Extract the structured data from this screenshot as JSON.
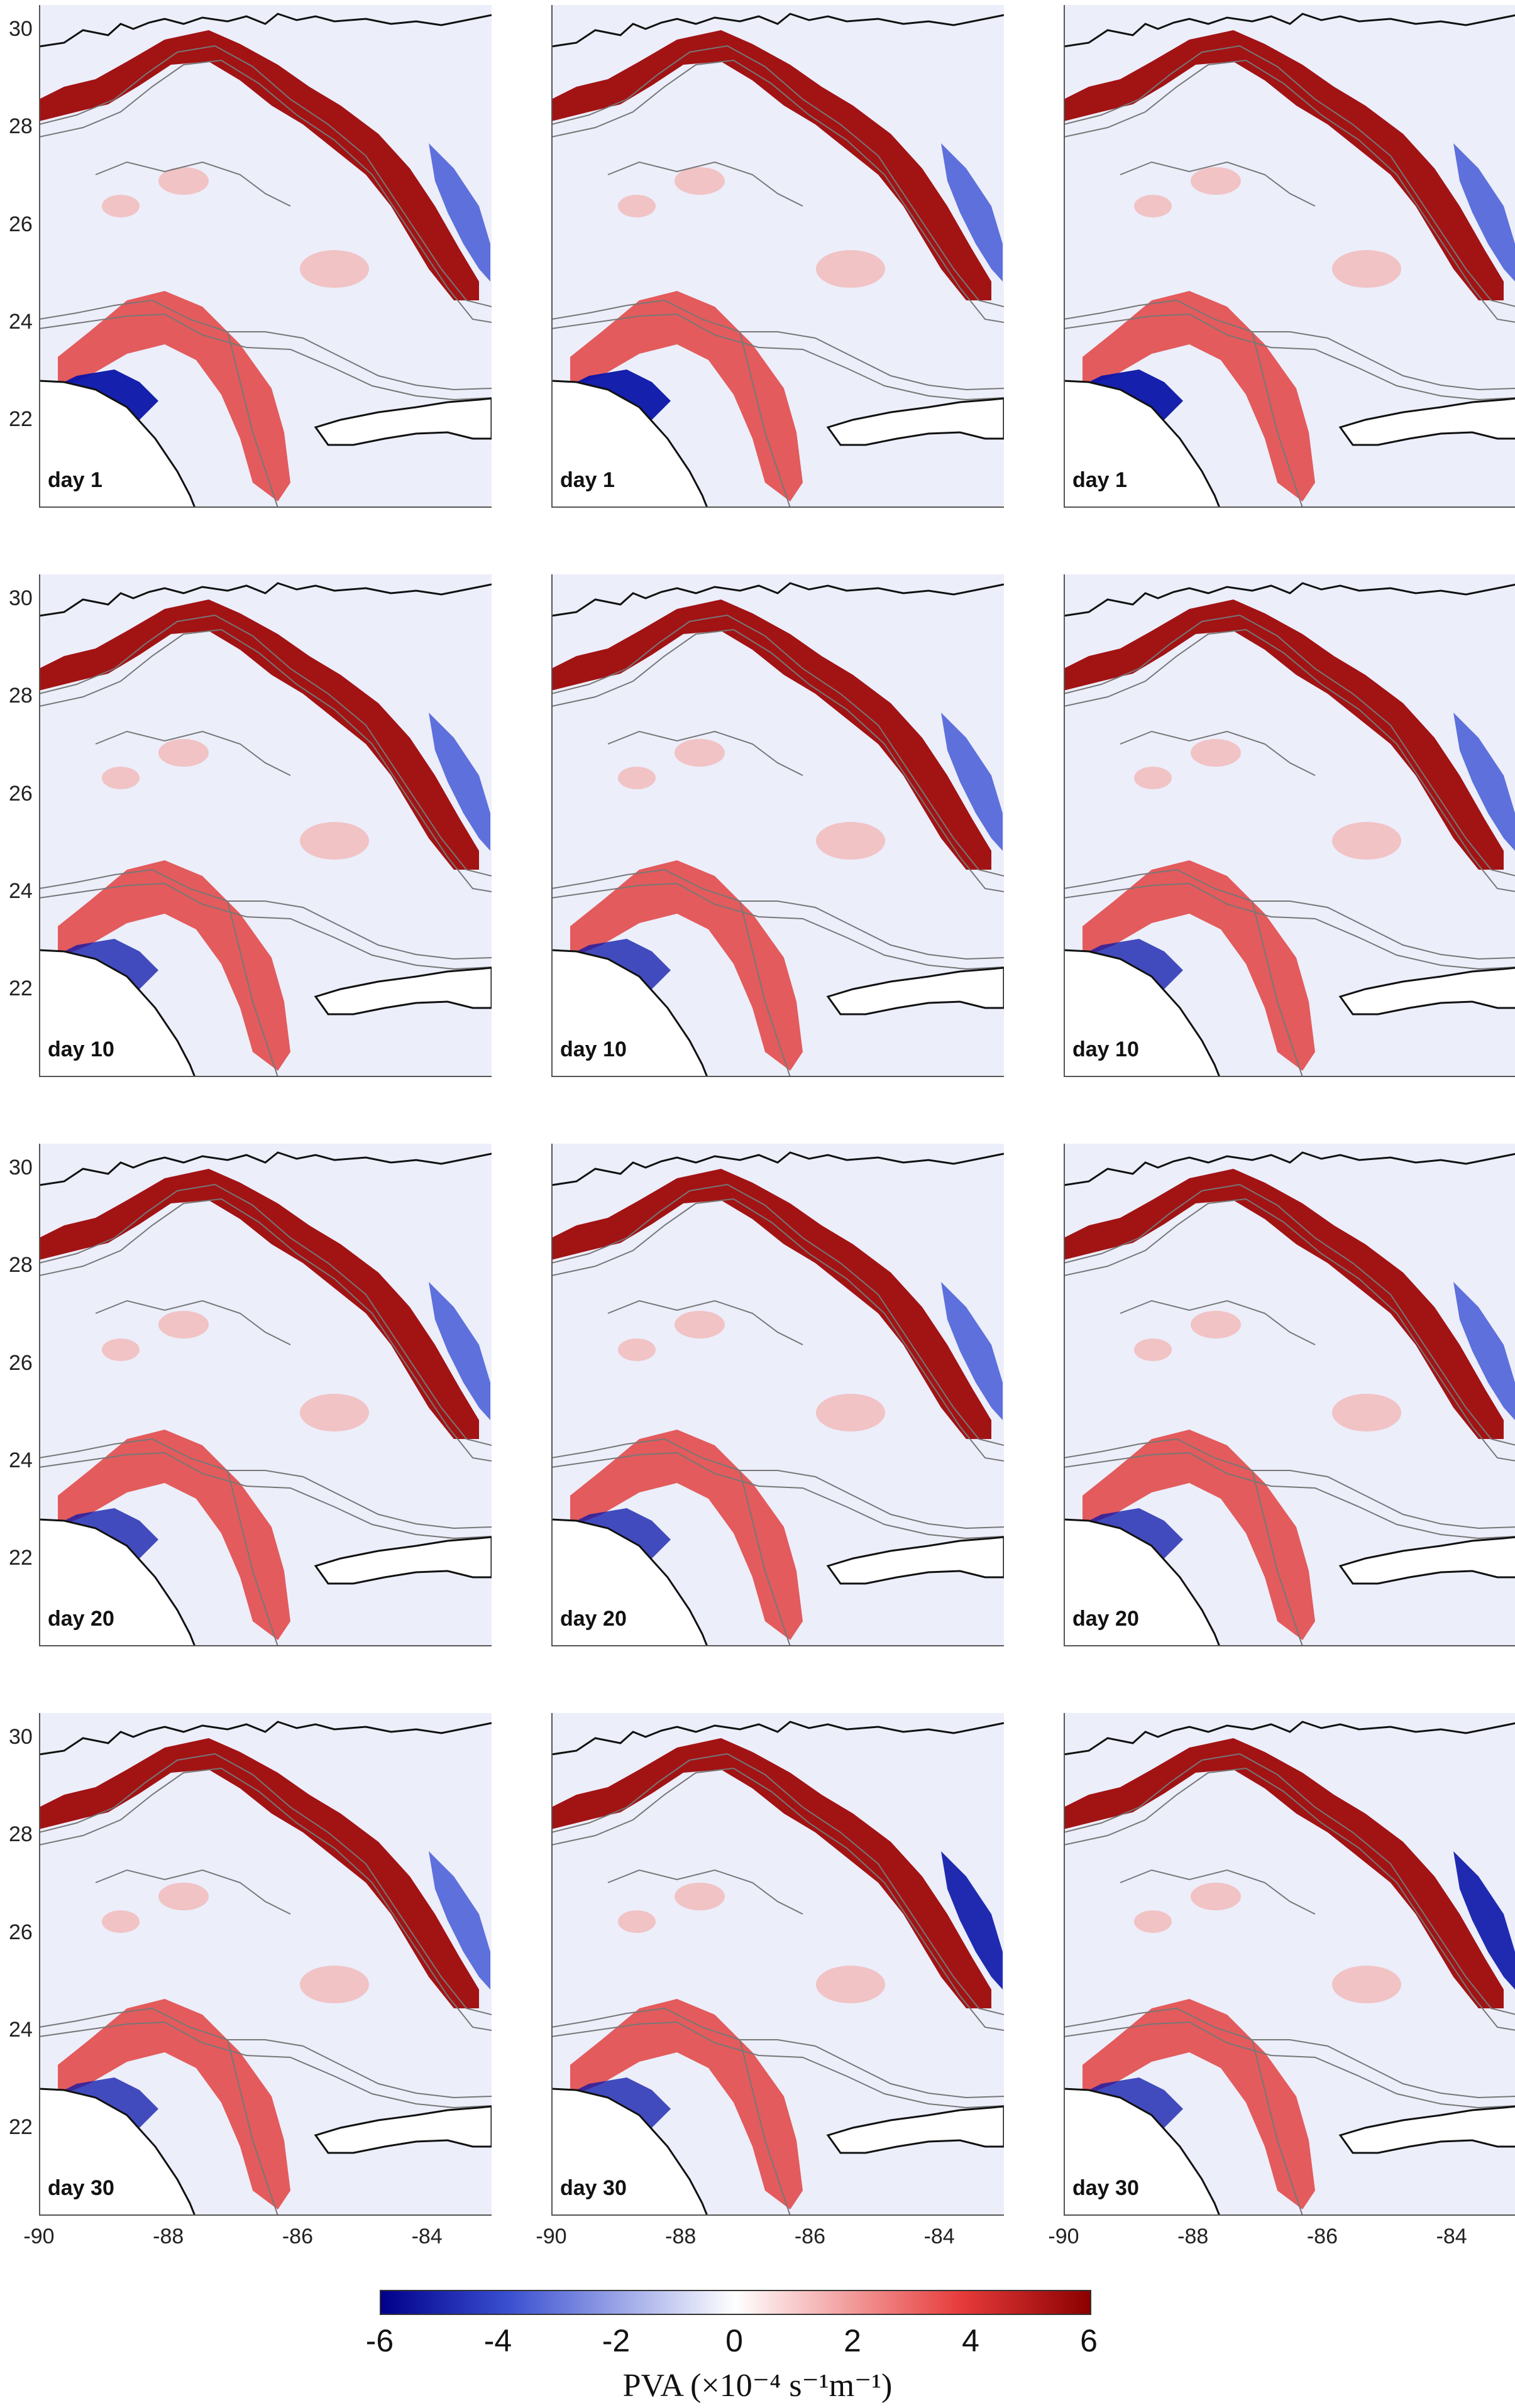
{
  "figure": {
    "panel_rows": [
      {
        "day_label": "day 1"
      },
      {
        "day_label": "day 10"
      },
      {
        "day_label": "day 20"
      },
      {
        "day_label": "day 30"
      }
    ],
    "panel_columns": 3,
    "latitude_ticks": [
      "30",
      "28",
      "26",
      "24",
      "22"
    ],
    "longitude_ticks": [
      "-90",
      "-88",
      "-86",
      "-84"
    ],
    "longitude_range": [
      -90,
      -83
    ],
    "latitude_range": [
      20.2,
      30.5
    ]
  },
  "colorbar": {
    "ticks": [
      "-6",
      "-4",
      "-2",
      "0",
      "2",
      "4",
      "6"
    ],
    "range": [
      -6,
      6
    ],
    "label": "PVA (×10⁻⁴ s⁻¹m⁻¹)",
    "colors": {
      "negative": "#00008b",
      "mid_negative": "#3a4fd0",
      "zero": "#ffffff",
      "mid_positive": "#e63a3a",
      "positive": "#8b0000"
    }
  },
  "colors": {
    "coastline": "#111111",
    "bathymetry_contour": "#777777",
    "strong_positive": "#9b0000",
    "positive": "#e24a4a",
    "weak_positive": "#f3b8b8",
    "weak_negative": "#c9cff0",
    "negative": "#4f62d8",
    "strong_negative": "#0a14a8"
  }
}
